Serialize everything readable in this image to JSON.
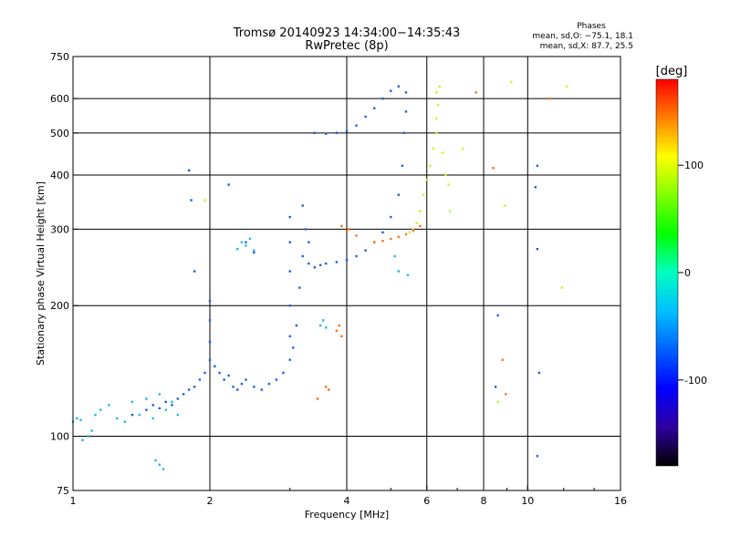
{
  "chart_data": {
    "type": "scatter",
    "title": "Tromsø 20140923 14:34:00−14:35:43",
    "subtitle": "RwPretec (8p)",
    "xlabel": "Frequency [MHz]",
    "ylabel": "Stationary phase Virtual Height [km]",
    "x_scale": "log",
    "y_scale": "log",
    "xlim": [
      1,
      16
    ],
    "ylim": [
      75,
      750
    ],
    "x_ticks": [
      1,
      2,
      4,
      6,
      8,
      10,
      16
    ],
    "y_ticks": [
      75,
      100,
      200,
      300,
      400,
      500,
      600,
      750
    ],
    "x_gridlines": [
      2,
      4,
      6,
      8,
      10
    ],
    "y_gridlines": [
      100,
      200,
      300,
      400,
      500,
      600
    ],
    "grid": true,
    "phase_box": {
      "title": "Phases",
      "line1": "mean, sd,O: −75.1, 18.1",
      "line2": "mean, sd,X:  87.7, 25.5"
    },
    "colorbar": {
      "label": "[deg]",
      "range": [
        -180,
        180
      ],
      "ticks": [
        100,
        0,
        -100
      ],
      "colors": [
        "#ff0000",
        "#ff8000",
        "#ffff00",
        "#80ff00",
        "#00ff00",
        "#00ffc0",
        "#00c0ff",
        "#0060ff",
        "#0000ff",
        "#3000a0",
        "#000000"
      ]
    },
    "series": [
      {
        "phase": -95,
        "color": "#1f5fd8",
        "points": [
          [
            1.35,
            112
          ],
          [
            1.45,
            115
          ],
          [
            1.5,
            118
          ],
          [
            1.55,
            116
          ],
          [
            1.6,
            120
          ],
          [
            1.65,
            118
          ],
          [
            1.7,
            122
          ],
          [
            1.75,
            125
          ],
          [
            1.8,
            128
          ],
          [
            1.85,
            130
          ],
          [
            1.9,
            135
          ],
          [
            1.95,
            140
          ],
          [
            2.0,
            150
          ],
          [
            2.0,
            165
          ],
          [
            2.0,
            185
          ],
          [
            2.0,
            205
          ],
          [
            2.05,
            145
          ],
          [
            2.1,
            140
          ],
          [
            2.15,
            135
          ],
          [
            2.2,
            138
          ],
          [
            2.25,
            130
          ],
          [
            2.3,
            128
          ],
          [
            2.35,
            132
          ],
          [
            2.4,
            135
          ],
          [
            2.5,
            130
          ],
          [
            2.6,
            128
          ],
          [
            2.7,
            132
          ],
          [
            2.8,
            135
          ],
          [
            2.9,
            140
          ],
          [
            3.0,
            150
          ],
          [
            3.0,
            170
          ],
          [
            3.0,
            200
          ],
          [
            3.0,
            240
          ],
          [
            3.0,
            280
          ],
          [
            3.0,
            320
          ],
          [
            3.05,
            160
          ],
          [
            3.1,
            180
          ],
          [
            3.15,
            220
          ],
          [
            3.2,
            260
          ],
          [
            3.25,
            300
          ],
          [
            3.3,
            280
          ],
          [
            3.3,
            250
          ],
          [
            3.4,
            245
          ],
          [
            3.5,
            248
          ],
          [
            3.6,
            250
          ],
          [
            3.8,
            252
          ],
          [
            4.0,
            255
          ],
          [
            4.2,
            260
          ],
          [
            4.4,
            268
          ],
          [
            4.6,
            280
          ],
          [
            4.8,
            295
          ],
          [
            5.0,
            320
          ],
          [
            5.2,
            360
          ],
          [
            5.3,
            420
          ],
          [
            5.35,
            500
          ],
          [
            5.4,
            560
          ],
          [
            5.4,
            620
          ],
          [
            3.4,
            500
          ],
          [
            3.6,
            498
          ],
          [
            3.8,
            500
          ],
          [
            4.0,
            505
          ],
          [
            4.2,
            520
          ],
          [
            4.4,
            545
          ],
          [
            4.6,
            570
          ],
          [
            4.8,
            600
          ],
          [
            5.0,
            625
          ],
          [
            5.2,
            640
          ],
          [
            1.8,
            410
          ],
          [
            1.82,
            350
          ],
          [
            1.85,
            240
          ],
          [
            2.2,
            380
          ],
          [
            2.4,
            280
          ],
          [
            2.5,
            265
          ],
          [
            3.2,
            340
          ],
          [
            8.6,
            190
          ],
          [
            8.5,
            130
          ],
          [
            10.5,
            420
          ],
          [
            10.4,
            375
          ],
          [
            10.5,
            270
          ],
          [
            10.6,
            140
          ],
          [
            10.5,
            90
          ]
        ]
      },
      {
        "phase": -40,
        "color": "#20b8e8",
        "points": [
          [
            1.0,
            108
          ],
          [
            1.02,
            110
          ],
          [
            1.04,
            109
          ],
          [
            1.05,
            98
          ],
          [
            1.08,
            100
          ],
          [
            1.1,
            103
          ],
          [
            1.12,
            112
          ],
          [
            1.15,
            115
          ],
          [
            1.2,
            118
          ],
          [
            1.25,
            110
          ],
          [
            1.3,
            108
          ],
          [
            1.35,
            120
          ],
          [
            1.4,
            112
          ],
          [
            1.45,
            122
          ],
          [
            1.5,
            110
          ],
          [
            1.55,
            125
          ],
          [
            1.6,
            115
          ],
          [
            1.65,
            120
          ],
          [
            1.7,
            112
          ],
          [
            1.52,
            88
          ],
          [
            1.55,
            86
          ],
          [
            1.58,
            84
          ],
          [
            2.3,
            270
          ],
          [
            2.35,
            280
          ],
          [
            2.4,
            275
          ],
          [
            2.45,
            285
          ],
          [
            2.5,
            268
          ],
          [
            3.5,
            180
          ],
          [
            3.55,
            185
          ],
          [
            3.6,
            178
          ],
          [
            5.1,
            260
          ],
          [
            5.2,
            240
          ],
          [
            5.45,
            235
          ]
        ]
      },
      {
        "phase": 40,
        "color": "#b4ff20",
        "points": [
          [
            5.8,
            330
          ],
          [
            5.9,
            360
          ],
          [
            6.0,
            390
          ],
          [
            6.1,
            420
          ],
          [
            6.2,
            460
          ],
          [
            6.3,
            500
          ],
          [
            6.3,
            540
          ],
          [
            6.35,
            580
          ],
          [
            6.3,
            620
          ],
          [
            6.4,
            640
          ],
          [
            6.5,
            450
          ],
          [
            6.6,
            400
          ],
          [
            6.7,
            380
          ],
          [
            6.75,
            330
          ],
          [
            5.6,
            300
          ],
          [
            5.7,
            310
          ],
          [
            5.5,
            295
          ],
          [
            1.95,
            350
          ],
          [
            8.6,
            120
          ],
          [
            9.2,
            655
          ],
          [
            12.2,
            640
          ],
          [
            11.9,
            220
          ],
          [
            8.9,
            340
          ],
          [
            7.2,
            460
          ]
        ]
      },
      {
        "phase": 150,
        "color": "#ff7010",
        "points": [
          [
            3.9,
            305
          ],
          [
            4.0,
            298
          ],
          [
            4.05,
            300
          ],
          [
            4.6,
            280
          ],
          [
            4.8,
            282
          ],
          [
            5.0,
            285
          ],
          [
            5.2,
            288
          ],
          [
            5.4,
            292
          ],
          [
            5.6,
            298
          ],
          [
            5.8,
            305
          ],
          [
            3.8,
            175
          ],
          [
            3.85,
            180
          ],
          [
            3.9,
            170
          ],
          [
            3.6,
            130
          ],
          [
            3.65,
            128
          ],
          [
            3.45,
            122
          ],
          [
            8.4,
            415
          ],
          [
            8.8,
            150
          ],
          [
            8.95,
            125
          ],
          [
            11.2,
            600
          ],
          [
            7.7,
            620
          ],
          [
            4.2,
            290
          ]
        ]
      }
    ]
  }
}
